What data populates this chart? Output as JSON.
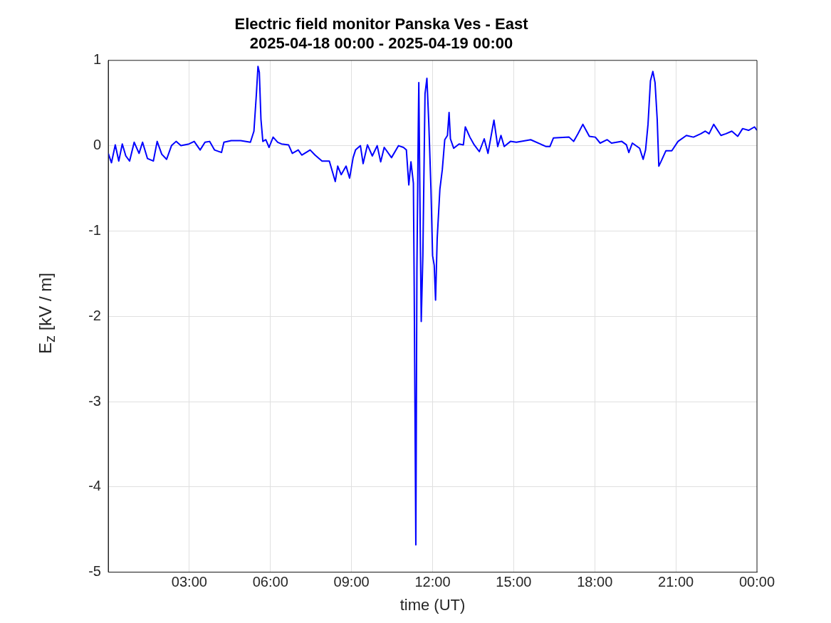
{
  "chart_data": {
    "type": "line",
    "title": "Electric field monitor Panska Ves - East\n2025-04-18 00:00 - 2025-04-19 00:00",
    "xlabel": "time (UT)",
    "ylabel": "E$_{z}$ [kV / m]",
    "xlim": [
      0,
      24
    ],
    "xticks": [
      {
        "value": 3,
        "label": "03:00"
      },
      {
        "value": 6,
        "label": "06:00"
      },
      {
        "value": 9,
        "label": "09:00"
      },
      {
        "value": 12,
        "label": "12:00"
      },
      {
        "value": 15,
        "label": "15:00"
      },
      {
        "value": 18,
        "label": "18:00"
      },
      {
        "value": 21,
        "label": "21:00"
      },
      {
        "value": 24,
        "label": "00:00"
      }
    ],
    "ylim": [
      -5,
      1
    ],
    "yticks": [
      -5,
      -4,
      -3,
      -2,
      -1,
      0,
      1
    ],
    "grid": true,
    "legend": false,
    "marker": "none",
    "line_style": "solid",
    "series": [
      {
        "color": "#0000ff",
        "x": [
          0,
          0.12,
          0.26,
          0.39,
          0.52,
          0.65,
          0.79,
          0.96,
          1.14,
          1.27,
          1.45,
          1.67,
          1.81,
          1.98,
          2.16,
          2.34,
          2.51,
          2.69,
          2.99,
          3.18,
          3.4,
          3.58,
          3.75,
          3.93,
          4.19,
          4.28,
          4.55,
          4.9,
          5.26,
          5.39,
          5.48,
          5.54,
          5.59,
          5.65,
          5.72,
          5.83,
          5.95,
          6.1,
          6.27,
          6.41,
          6.67,
          6.81,
          7.03,
          7.16,
          7.47,
          7.65,
          7.91,
          8.18,
          8.4,
          8.49,
          8.62,
          8.8,
          8.93,
          9.06,
          9.15,
          9.33,
          9.43,
          9.59,
          9.77,
          9.95,
          10.08,
          10.21,
          10.48,
          10.74,
          10.92,
          11.03,
          11.12,
          11.2,
          11.29,
          11.32,
          11.38,
          11.42,
          11.47,
          11.49,
          11.54,
          11.58,
          11.64,
          11.72,
          11.79,
          11.86,
          11.94,
          12,
          12.06,
          12.11,
          12.17,
          12.27,
          12.36,
          12.45,
          12.55,
          12.61,
          12.66,
          12.78,
          12.98,
          13.14,
          13.21,
          13.38,
          13.54,
          13.73,
          13.91,
          14.05,
          14.27,
          14.41,
          14.53,
          14.65,
          14.88,
          15.1,
          15.63,
          15.98,
          16.2,
          16.34,
          16.47,
          17.05,
          17.22,
          17.38,
          17.56,
          17.8,
          18.02,
          18.2,
          18.46,
          18.62,
          19,
          19.17,
          19.26,
          19.39,
          19.66,
          19.79,
          19.88,
          19.97,
          20.06,
          20.15,
          20.23,
          20.31,
          20.37,
          20.46,
          20.63,
          20.85,
          21.08,
          21.39,
          21.65,
          21.92,
          22.09,
          22.23,
          22.4,
          22.67,
          22.85,
          23.07,
          23.29,
          23.47,
          23.69,
          23.91,
          24
        ],
        "values": [
          -0.09,
          -0.2,
          0.01,
          -0.18,
          0.02,
          -0.12,
          -0.18,
          0.04,
          -0.09,
          0.04,
          -0.15,
          -0.18,
          0.05,
          -0.1,
          -0.16,
          0,
          0.05,
          0,
          0.02,
          0.05,
          -0.05,
          0.04,
          0.05,
          -0.05,
          -0.08,
          0.04,
          0.06,
          0.06,
          0.04,
          0.17,
          0.6,
          0.93,
          0.86,
          0.31,
          0.05,
          0.07,
          -0.02,
          0.1,
          0.04,
          0.02,
          0.01,
          -0.09,
          -0.05,
          -0.11,
          -0.05,
          -0.11,
          -0.18,
          -0.18,
          -0.42,
          -0.24,
          -0.34,
          -0.24,
          -0.38,
          -0.14,
          -0.05,
          0,
          -0.21,
          0.01,
          -0.12,
          0,
          -0.19,
          -0.02,
          -0.14,
          0,
          -0.02,
          -0.05,
          -0.46,
          -0.19,
          -0.44,
          -1.67,
          -4.68,
          -1.45,
          0.2,
          0.74,
          -0.9,
          -2.06,
          -1.29,
          0.61,
          0.79,
          0.26,
          -0.51,
          -1.29,
          -1.4,
          -1.81,
          -1.09,
          -0.51,
          -0.28,
          0.07,
          0.12,
          0.39,
          0.08,
          -0.03,
          0.02,
          0.01,
          0.22,
          0.1,
          0.01,
          -0.07,
          0.08,
          -0.09,
          0.3,
          -0.01,
          0.12,
          -0.01,
          0.05,
          0.04,
          0.07,
          0.02,
          -0.01,
          -0.01,
          0.09,
          0.1,
          0.05,
          0.14,
          0.25,
          0.11,
          0.1,
          0.03,
          0.07,
          0.03,
          0.05,
          0.01,
          -0.08,
          0.03,
          -0.03,
          -0.16,
          -0.05,
          0.25,
          0.76,
          0.87,
          0.74,
          0.31,
          -0.24,
          -0.18,
          -0.06,
          -0.06,
          0.05,
          0.12,
          0.1,
          0.14,
          0.17,
          0.14,
          0.25,
          0.12,
          0.14,
          0.17,
          0.11,
          0.2,
          0.18,
          0.22,
          0.18
        ]
      }
    ]
  }
}
